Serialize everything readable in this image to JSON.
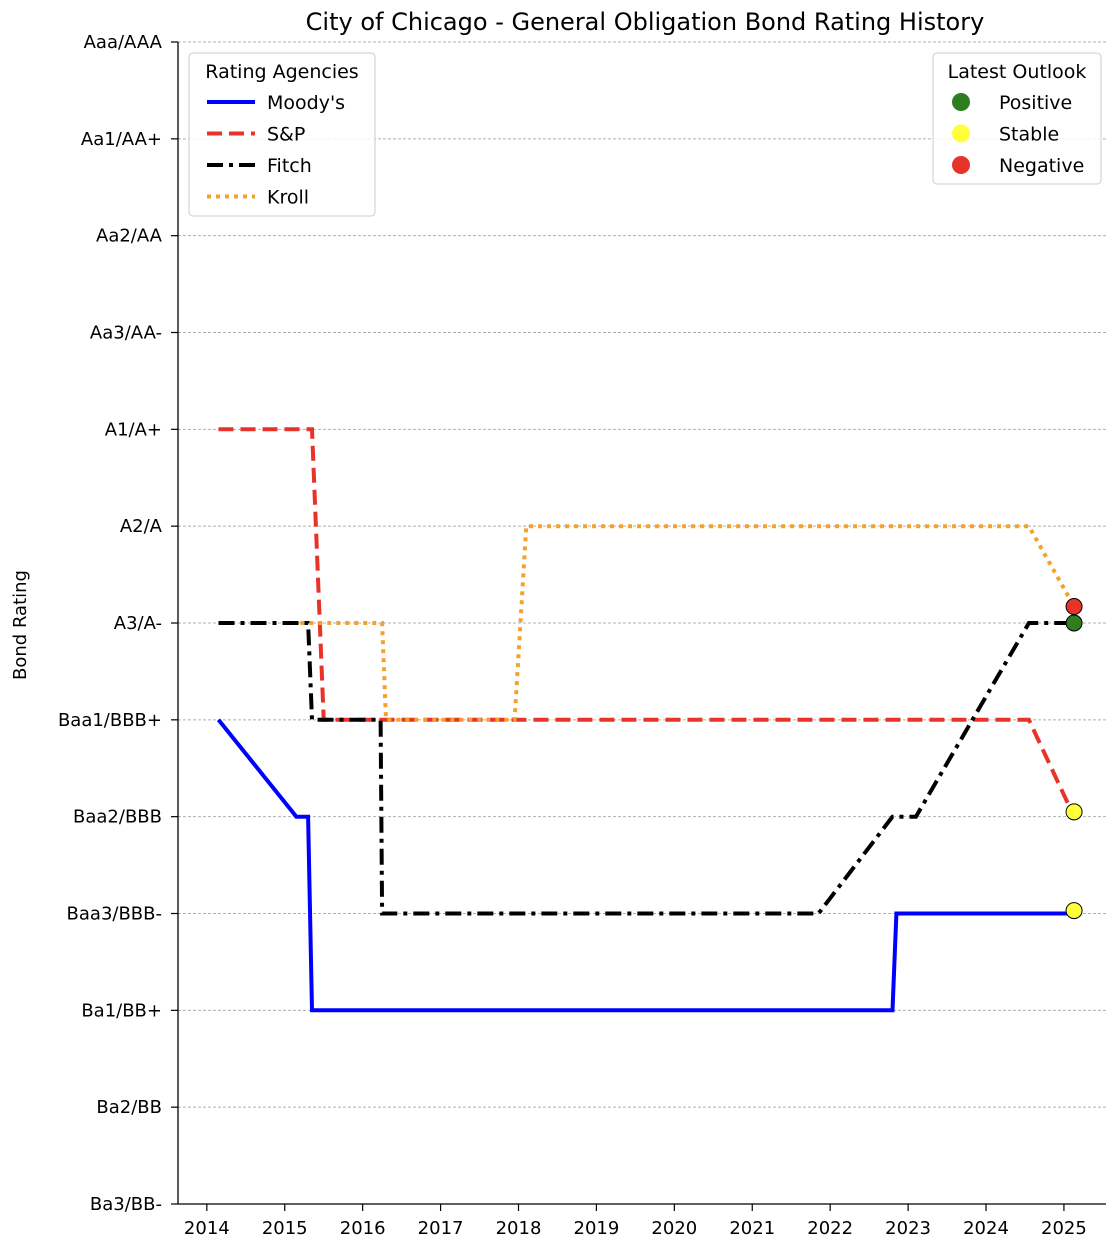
{
  "chart_data": {
    "type": "line",
    "title": "City of Chicago - General Obligation Bond Rating History",
    "ylabel": "Bond Rating",
    "xlabel": "",
    "xlim": [
      2013.63,
      2025.54
    ],
    "ylim": [
      0,
      12
    ],
    "x_ticks": [
      2014,
      2015,
      2016,
      2017,
      2018,
      2019,
      2020,
      2021,
      2022,
      2023,
      2024,
      2025
    ],
    "x_tick_labels": [
      "2014",
      "2015",
      "2016",
      "2017",
      "2018",
      "2019",
      "2020",
      "2021",
      "2022",
      "2023",
      "2024",
      "2025"
    ],
    "y_ticks": [
      0,
      1,
      2,
      3,
      4,
      5,
      6,
      7,
      8,
      9,
      10,
      11,
      12
    ],
    "y_tick_labels": [
      "Ba3/BB-",
      "Ba2/BB",
      "Ba1/BB+",
      "Baa3/BBB-",
      "Baa2/BBB",
      "Baa1/BBB+",
      "A3/A-",
      "A2/A",
      "A1/A+",
      "Aa3/AA-",
      "Aa2/AA",
      "Aa1/AA+",
      "Aaa/AAA"
    ],
    "grid": "horizontal dashed",
    "series": [
      {
        "name": "Moody's",
        "color": "#0000ff",
        "style": "solid",
        "points": [
          [
            2014.15,
            5
          ],
          [
            2015.15,
            4
          ],
          [
            2015.3,
            4
          ],
          [
            2015.35,
            2
          ],
          [
            2022.8,
            2
          ],
          [
            2022.85,
            3
          ],
          [
            2025.13,
            3
          ]
        ]
      },
      {
        "name": "S&P",
        "color": "#e8332a",
        "style": "dashed",
        "points": [
          [
            2014.15,
            8
          ],
          [
            2015.35,
            8
          ],
          [
            2015.5,
            5
          ],
          [
            2024.55,
            5
          ],
          [
            2025.13,
            4
          ]
        ]
      },
      {
        "name": "Fitch",
        "color": "#000000",
        "style": "dashdot",
        "points": [
          [
            2014.15,
            6
          ],
          [
            2015.3,
            6
          ],
          [
            2015.35,
            5
          ],
          [
            2016.23,
            5
          ],
          [
            2016.25,
            3
          ],
          [
            2021.85,
            3
          ],
          [
            2022.8,
            4
          ],
          [
            2023.1,
            4
          ],
          [
            2024.55,
            6
          ],
          [
            2025.13,
            6
          ]
        ]
      },
      {
        "name": "Kroll",
        "color": "#f5a12d",
        "style": "dotted",
        "points": [
          [
            2015.2,
            6
          ],
          [
            2016.25,
            6
          ],
          [
            2016.3,
            5
          ],
          [
            2017.95,
            5
          ],
          [
            2018.1,
            7
          ],
          [
            2024.55,
            7
          ],
          [
            2025.13,
            6.17
          ]
        ]
      }
    ],
    "outlook_markers": [
      {
        "x": 2025.13,
        "y": 6.17,
        "outlook": "Negative"
      },
      {
        "x": 2025.13,
        "y": 6.0,
        "outlook": "Positive"
      },
      {
        "x": 2025.13,
        "y": 4.05,
        "outlook": "Stable"
      },
      {
        "x": 2025.13,
        "y": 3.03,
        "outlook": "Stable"
      }
    ],
    "legend_agencies": {
      "title": "Rating Agencies",
      "placement": "top-left",
      "entries": [
        "Moody's",
        "S&P",
        "Fitch",
        "Kroll"
      ]
    },
    "legend_outlook": {
      "title": "Latest Outlook",
      "placement": "top-right",
      "entries": [
        {
          "label": "Positive",
          "color": "#2e7d1e"
        },
        {
          "label": "Stable",
          "color": "#ffff3c"
        },
        {
          "label": "Negative",
          "color": "#e8332a"
        }
      ]
    }
  }
}
